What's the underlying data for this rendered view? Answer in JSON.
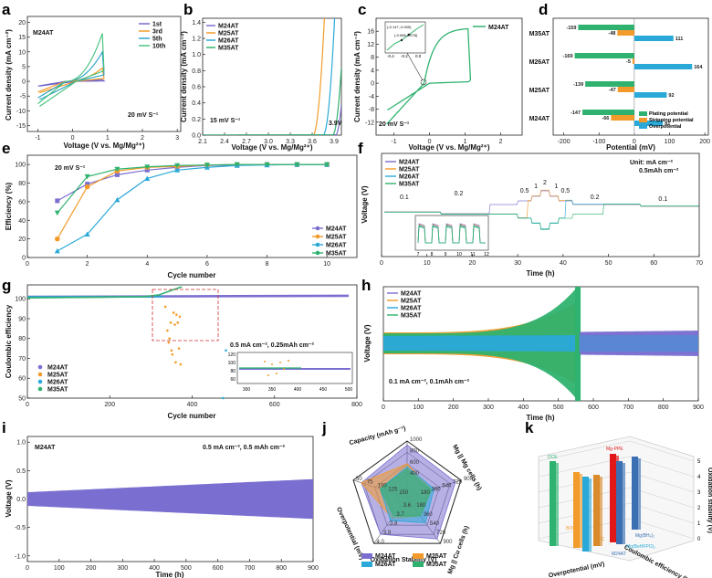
{
  "colors": {
    "M24AT": "#7a6fd0",
    "M25AT": "#f39b2a",
    "M26AT": "#2aa9d8",
    "M35AT": "#2fb26f",
    "cv1st": "#6f62c8",
    "cv3rd": "#f3961e",
    "cv5th": "#22a0c8",
    "cv10th": "#43c07a",
    "plating": "#2fb26f",
    "stripping": "#f39b2a",
    "overpot": "#2aa9d8",
    "bar_red": "#e01818",
    "bar_blue": "#3a6fb4",
    "radar_line": "#6a5fc0"
  },
  "chart_data": [
    {
      "panel": "a",
      "type": "line",
      "sample": "M24AT",
      "legend": [
        "1st",
        "3rd",
        "5th",
        "10th"
      ],
      "xlabel": "Voltage (V vs. Mg/Mg²⁺)",
      "ylabel": "Current density (mA cm⁻²)",
      "xlim": [
        -1.3,
        3.1
      ],
      "ylim": [
        -17,
        22
      ],
      "xticks": [
        -1,
        0,
        1,
        2,
        3
      ],
      "yticks": [
        -15,
        -10,
        -5,
        0,
        5,
        10,
        15,
        20
      ],
      "scan_rate": "20 mV S⁻¹",
      "peak_currents": [
        0.6,
        5,
        11,
        18
      ]
    },
    {
      "panel": "b",
      "type": "line",
      "series": [
        "M24AT",
        "M25AT",
        "M26AT",
        "M35AT"
      ],
      "xlabel": "Voltage (V vs. Mg/Mg²⁺)",
      "ylabel": "Current density (mA cm⁻²)",
      "xlim": [
        2.1,
        4.0
      ],
      "ylim": [
        0,
        1.45
      ],
      "xticks": [
        "2.1",
        "2.4",
        "2.7",
        "3.0",
        "3.3",
        "3.6",
        "3.9"
      ],
      "yticks": [
        "0.0",
        "0.2",
        "0.4",
        "0.6",
        "0.8",
        "1.0",
        "1.2",
        "1.4"
      ],
      "onset_V": [
        3.92,
        3.62,
        3.75,
        3.88
      ],
      "scan_rate": "15 mV S⁻¹",
      "annotation": "3.9V"
    },
    {
      "panel": "c",
      "type": "line",
      "series": [
        "M24AT"
      ],
      "xlabel": "Voltage (V vs. Mg/Mg²⁺)",
      "ylabel": "Current density (mA cm⁻²)",
      "xlim": [
        -1.5,
        2.6
      ],
      "ylim": [
        -16,
        20
      ],
      "xticks": [
        "-1",
        "0",
        "1",
        "2"
      ],
      "yticks": [
        "-12",
        "-8",
        "-4",
        "0",
        "4",
        "8",
        "12",
        "16"
      ],
      "scan_rate": "20 mV S⁻¹",
      "inset_points": [
        "(-0.147,-0.009)",
        "(-0.066,0.078)"
      ],
      "inset_xticks": [
        "-0.4",
        "-0.2",
        "0.0"
      ]
    },
    {
      "panel": "d",
      "type": "bar",
      "orientation": "horizontal",
      "categories": [
        "M35AT",
        "M26AT",
        "M25AT",
        "M24AT"
      ],
      "series": [
        {
          "name": "Plating potential",
          "values": [
            -159,
            -169,
            -139,
            -147
          ]
        },
        {
          "name": "Stripping potential",
          "values": [
            -48,
            -5,
            -47,
            -66
          ]
        },
        {
          "name": "Overpotential",
          "values": [
            111,
            164,
            92,
            81
          ]
        }
      ],
      "xlabel": "Potential (mV)",
      "xlim": [
        -230,
        210
      ],
      "xticks": [
        "-200",
        "-100",
        "0",
        "100",
        "200"
      ]
    },
    {
      "panel": "e",
      "type": "line",
      "series": [
        {
          "name": "M24AT",
          "x": [
            1,
            2,
            3,
            4,
            5,
            6,
            7,
            8,
            9,
            10
          ],
          "values": [
            61,
            79,
            89,
            94,
            97,
            99,
            99.5,
            100,
            100,
            100
          ]
        },
        {
          "name": "M25AT",
          "x": [
            1,
            2,
            3,
            4,
            5,
            6,
            7,
            8,
            9,
            10
          ],
          "values": [
            20,
            76,
            93,
            97,
            98,
            99.5,
            100,
            100,
            100,
            100
          ]
        },
        {
          "name": "M26AT",
          "x": [
            1,
            2,
            3,
            4,
            5,
            6,
            7,
            8,
            9,
            10
          ],
          "values": [
            7,
            25,
            62,
            85,
            94,
            97,
            99,
            99.5,
            100,
            100
          ]
        },
        {
          "name": "M35AT",
          "x": [
            1,
            2,
            3,
            4,
            5,
            6,
            7,
            8,
            9,
            10
          ],
          "values": [
            48,
            87,
            95,
            97.5,
            99,
            99.5,
            100,
            100,
            100,
            100
          ]
        }
      ],
      "xlabel": "Cycle number",
      "ylabel": "Efficiency (%)",
      "xlim": [
        0,
        11
      ],
      "ylim": [
        0,
        110
      ],
      "xticks": [
        "0",
        "2",
        "4",
        "6",
        "8",
        "10"
      ],
      "yticks": [
        "0",
        "20",
        "40",
        "60",
        "80",
        "100"
      ],
      "scan_rate": "20 mV S⁻¹"
    },
    {
      "panel": "f",
      "type": "line",
      "series": [
        "M24AT",
        "M25AT",
        "M26AT",
        "M35AT"
      ],
      "xlabel": "Time (h)",
      "ylabel": "Voltage (V)",
      "xlim": [
        0,
        70
      ],
      "xticks": [
        "0",
        "10",
        "20",
        "30",
        "40",
        "50",
        "60",
        "70"
      ],
      "unit_note": "Unit: mA cm⁻²",
      "capacity_note": "0.5mAh cm⁻²",
      "rate_labels": [
        "0.1",
        "0.2",
        "0.5",
        "1",
        "2",
        "1",
        "0.5",
        "0.2",
        "0.1"
      ],
      "inset_xticks": [
        "7",
        "8",
        "9",
        "10",
        "11",
        "12"
      ]
    },
    {
      "panel": "g",
      "type": "scatter",
      "series": [
        "M24AT",
        "M25AT",
        "M26AT",
        "M35AT"
      ],
      "xlabel": "Cycle number",
      "ylabel": "Coulombic efficiency",
      "xlim": [
        0,
        800
      ],
      "ylim": [
        50,
        107
      ],
      "xticks": [
        "0",
        "200",
        "400",
        "600",
        "800"
      ],
      "yticks": [
        "50",
        "60",
        "70",
        "80",
        "90",
        "100"
      ],
      "condition": "0.5 mA cm⁻², 0.25mAh cm⁻²",
      "inset_xticks": [
        "300",
        "350",
        "400",
        "450",
        "500"
      ],
      "inset_yticks": [
        "60",
        "80",
        "100",
        "120"
      ]
    },
    {
      "panel": "h",
      "type": "line",
      "series": [
        "M24AT",
        "M25AT",
        "M26AT",
        "M35AT"
      ],
      "xlabel": "Time (h)",
      "ylabel": "Voltage (V)",
      "xlim": [
        0,
        900
      ],
      "xticks": [
        "0",
        "100",
        "200",
        "300",
        "400",
        "500",
        "600",
        "700",
        "800",
        "900"
      ],
      "condition": "0.1 mA cm⁻², 0.1mAh cm⁻²"
    },
    {
      "panel": "i",
      "type": "line",
      "series": [
        "M24AT"
      ],
      "xlabel": "Time (h)",
      "ylabel": "Voltage (V)",
      "xlim": [
        0,
        900
      ],
      "ylim": [
        -1.1,
        1.1
      ],
      "xticks": [
        "0",
        "100",
        "200",
        "300",
        "400",
        "500",
        "600",
        "700",
        "800",
        "900"
      ],
      "yticks": [
        "-1.0",
        "-0.5",
        "0.0",
        "0.5",
        "1.0"
      ],
      "condition": "0.5 mA cm⁻², 0.5 mAh cm⁻²",
      "amplitude_start": 0.12,
      "amplitude_end": 0.35
    },
    {
      "panel": "j",
      "type": "radar",
      "axes": [
        "Capacity (mAh g⁻¹)",
        "Mg || Mg cells (h)",
        "Mg || Cu cells (h)",
        "Oxidation Stability (V)",
        "Overpotential (mV)"
      ],
      "axis_ticks": [
        [
          "1000",
          "800",
          "600",
          "400"
        ],
        [
          "900",
          "720",
          "540",
          "360",
          "180"
        ],
        [
          "900",
          "720",
          "540",
          "360",
          "180"
        ],
        [
          "4.0",
          "3.9",
          "3.8",
          "3.7",
          "3.6"
        ],
        [
          "50",
          "75",
          "100",
          "125",
          "150"
        ]
      ],
      "series": [
        {
          "name": "M24AT",
          "values": [
            0.93,
            0.9,
            0.9,
            0.8,
            0.85
          ]
        },
        {
          "name": "M25AT",
          "values": [
            0.6,
            0.45,
            0.4,
            0.45,
            0.85
          ]
        },
        {
          "name": "M26AT",
          "values": [
            0.55,
            0.5,
            0.55,
            0.5,
            0.5
          ]
        },
        {
          "name": "M35AT",
          "values": [
            0.5,
            0.45,
            0.4,
            0.4,
            0.5
          ]
        }
      ]
    },
    {
      "panel": "k",
      "type": "bar3d",
      "labels": [
        "DCE",
        "Mg-PPE",
        "BOCY",
        "APC",
        "M24AT",
        "Mg(BH₄)₂",
        "Mg(BeHFPO)₂"
      ],
      "axis_labels": [
        "Overpotential (mV)",
        "Coulombic efficiency (%)",
        "Oxidation stability (V)"
      ],
      "zticks": [
        "0",
        "1",
        "2",
        "3",
        "4",
        "5"
      ]
    }
  ],
  "labels": {
    "a": "a",
    "b": "b",
    "c": "c",
    "d": "d",
    "e": "e",
    "f": "f",
    "g": "g",
    "h": "h",
    "i": "i",
    "j": "j",
    "k": "k"
  }
}
